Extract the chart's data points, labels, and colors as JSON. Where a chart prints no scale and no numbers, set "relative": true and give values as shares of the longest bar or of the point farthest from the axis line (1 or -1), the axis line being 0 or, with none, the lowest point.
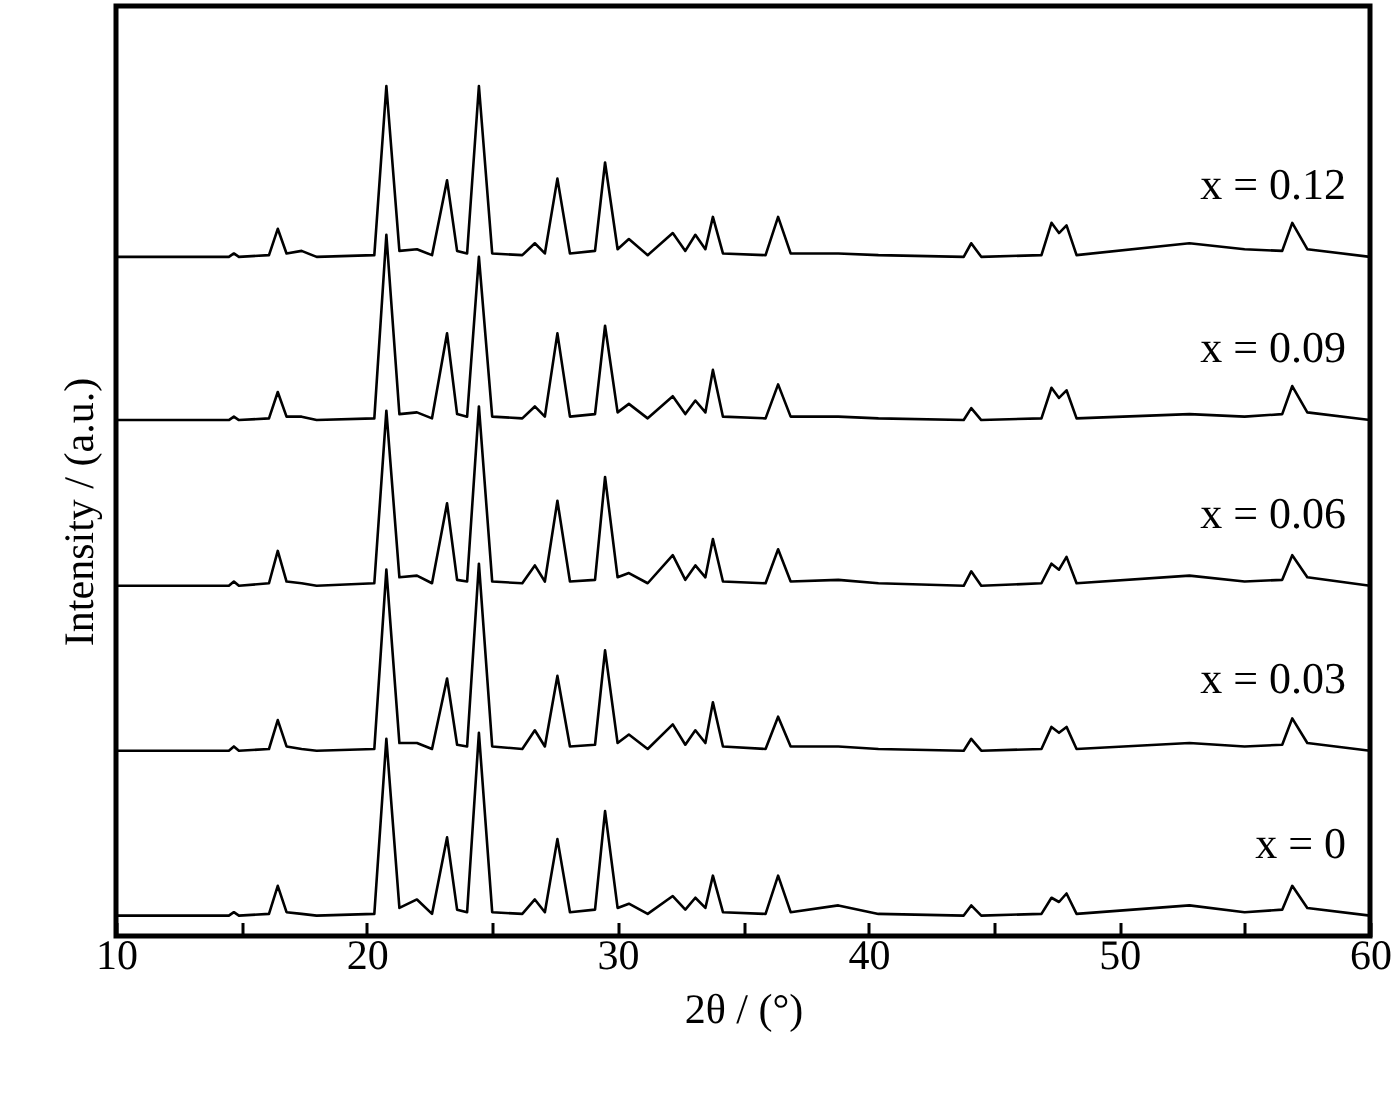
{
  "chart_data": {
    "type": "line",
    "xlabel": "2θ / (°)",
    "ylabel": "Intensity / (a.u.)",
    "relative": true,
    "xlim": [
      10,
      60
    ],
    "xticks": [
      10,
      {
        "value": 15,
        "label": null
      },
      20,
      {
        "value": 25,
        "label": null
      },
      30,
      {
        "value": 35,
        "label": null
      },
      40,
      {
        "value": 45,
        "label": null
      },
      50,
      {
        "value": 55,
        "label": null
      },
      60
    ],
    "x": [
      10,
      14.5,
      14.7,
      14.9,
      16.1,
      16.45,
      16.8,
      17.4,
      18,
      20.3,
      20.78,
      21.3,
      22.0,
      22.6,
      23.2,
      23.6,
      24.0,
      24.47,
      25.0,
      26.2,
      26.7,
      27.1,
      27.6,
      28.1,
      29.1,
      29.5,
      30.0,
      30.45,
      31.2,
      32.2,
      32.7,
      33.1,
      33.5,
      33.8,
      34.2,
      35.9,
      36.4,
      36.9,
      38.8,
      40.4,
      43.8,
      44.1,
      44.5,
      46.9,
      47.3,
      47.6,
      47.9,
      48.3,
      52.8,
      55.0,
      56.5,
      56.9,
      57.5,
      60
    ],
    "series": [
      {
        "name": "x = 0.12",
        "color": "#000000",
        "values": [
          0.799,
          0.799,
          0.803,
          0.799,
          0.801,
          0.832,
          0.803,
          0.806,
          0.799,
          0.801,
          1.0,
          0.806,
          0.808,
          0.801,
          0.889,
          0.806,
          0.803,
          1.0,
          0.803,
          0.801,
          0.815,
          0.803,
          0.891,
          0.803,
          0.806,
          0.91,
          0.808,
          0.82,
          0.801,
          0.827,
          0.806,
          0.825,
          0.808,
          0.846,
          0.803,
          0.801,
          0.846,
          0.803,
          0.803,
          0.801,
          0.799,
          0.815,
          0.799,
          0.801,
          0.839,
          0.827,
          0.836,
          0.801,
          0.815,
          0.808,
          0.806,
          0.839,
          0.808,
          0.799
        ]
      },
      {
        "name": "x = 0.09",
        "color": "#000000",
        "values": [
          0.607,
          0.607,
          0.611,
          0.607,
          0.609,
          0.64,
          0.611,
          0.611,
          0.607,
          0.609,
          0.825,
          0.614,
          0.616,
          0.609,
          0.709,
          0.614,
          0.611,
          0.799,
          0.611,
          0.609,
          0.623,
          0.611,
          0.709,
          0.611,
          0.614,
          0.718,
          0.616,
          0.626,
          0.609,
          0.635,
          0.614,
          0.63,
          0.616,
          0.666,
          0.611,
          0.609,
          0.649,
          0.611,
          0.611,
          0.609,
          0.607,
          0.621,
          0.607,
          0.609,
          0.645,
          0.633,
          0.642,
          0.609,
          0.614,
          0.611,
          0.614,
          0.647,
          0.616,
          0.607
        ]
      },
      {
        "name": "x = 0.06",
        "color": "#000000",
        "values": [
          0.412,
          0.412,
          0.417,
          0.412,
          0.415,
          0.453,
          0.417,
          0.415,
          0.412,
          0.415,
          0.618,
          0.422,
          0.424,
          0.415,
          0.509,
          0.419,
          0.417,
          0.623,
          0.417,
          0.415,
          0.436,
          0.417,
          0.512,
          0.417,
          0.419,
          0.54,
          0.422,
          0.427,
          0.415,
          0.448,
          0.419,
          0.436,
          0.422,
          0.467,
          0.417,
          0.415,
          0.455,
          0.417,
          0.419,
          0.415,
          0.412,
          0.429,
          0.412,
          0.415,
          0.438,
          0.431,
          0.446,
          0.415,
          0.424,
          0.417,
          0.419,
          0.448,
          0.422,
          0.412
        ]
      },
      {
        "name": "x = 0.03",
        "color": "#000000",
        "values": [
          0.218,
          0.218,
          0.223,
          0.218,
          0.22,
          0.254,
          0.223,
          0.22,
          0.218,
          0.22,
          0.431,
          0.227,
          0.227,
          0.22,
          0.303,
          0.225,
          0.223,
          0.438,
          0.223,
          0.22,
          0.242,
          0.223,
          0.306,
          0.223,
          0.225,
          0.336,
          0.227,
          0.237,
          0.22,
          0.249,
          0.225,
          0.242,
          0.227,
          0.275,
          0.223,
          0.22,
          0.258,
          0.223,
          0.223,
          0.22,
          0.218,
          0.232,
          0.218,
          0.22,
          0.246,
          0.239,
          0.246,
          0.22,
          0.227,
          0.223,
          0.225,
          0.256,
          0.227,
          0.218
        ]
      },
      {
        "name": "x = 0",
        "color": "#000000",
        "values": [
          0.024,
          0.024,
          0.028,
          0.024,
          0.026,
          0.059,
          0.028,
          0.026,
          0.024,
          0.026,
          0.232,
          0.033,
          0.043,
          0.026,
          0.116,
          0.031,
          0.028,
          0.239,
          0.028,
          0.026,
          0.043,
          0.028,
          0.114,
          0.028,
          0.031,
          0.147,
          0.033,
          0.038,
          0.026,
          0.047,
          0.031,
          0.045,
          0.033,
          0.071,
          0.028,
          0.026,
          0.071,
          0.028,
          0.036,
          0.026,
          0.024,
          0.036,
          0.024,
          0.026,
          0.045,
          0.04,
          0.05,
          0.026,
          0.036,
          0.028,
          0.031,
          0.059,
          0.033,
          0.024
        ]
      }
    ]
  }
}
